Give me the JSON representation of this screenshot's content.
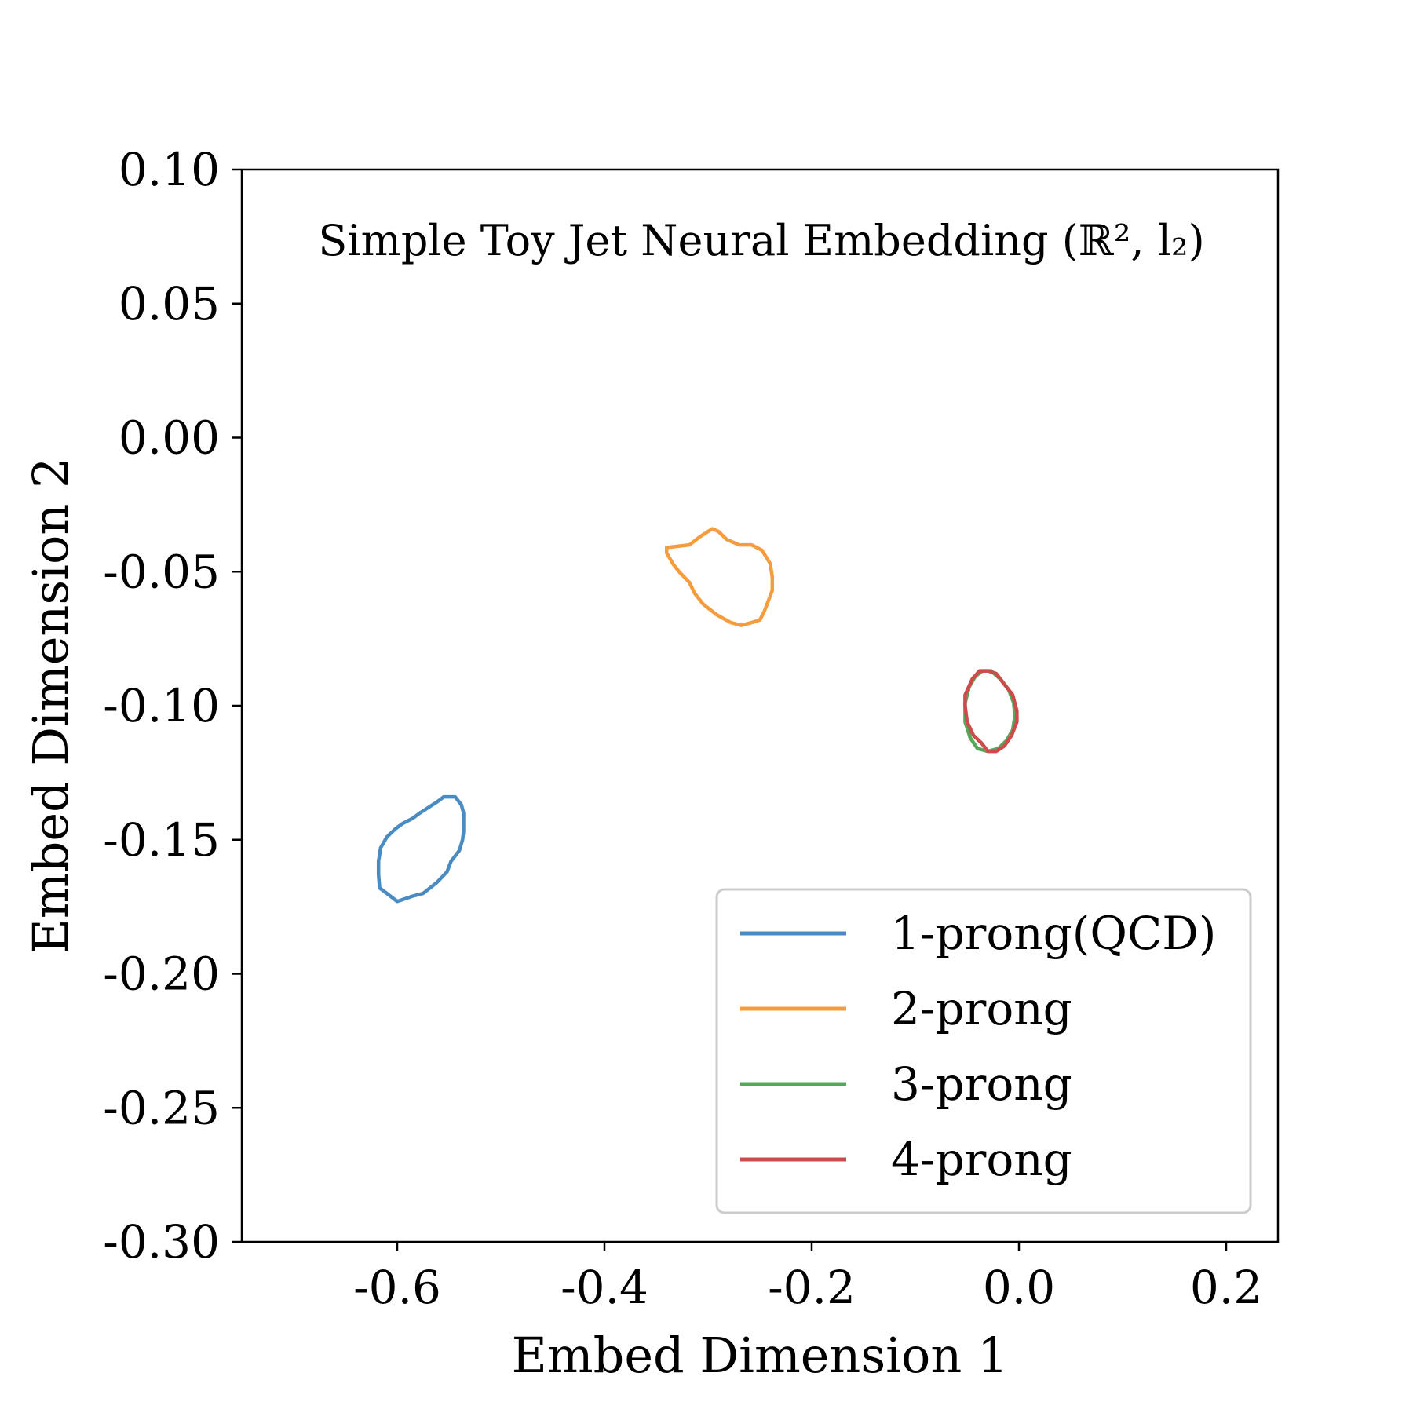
{
  "chart_data": {
    "type": "line",
    "title": "",
    "annotation": "Simple Toy Jet Neural Embedding (ℝ², l₂)",
    "xlabel": "Embed Dimension 1",
    "ylabel": "Embed Dimension 2",
    "xlim": [
      -0.75,
      0.25
    ],
    "ylim": [
      -0.3,
      0.1
    ],
    "xticks": [
      {
        "value": -0.6,
        "label": "-0.6"
      },
      {
        "value": -0.4,
        "label": "-0.4"
      },
      {
        "value": -0.2,
        "label": "-0.2"
      },
      {
        "value": 0.0,
        "label": "0.0"
      },
      {
        "value": 0.2,
        "label": "0.2"
      }
    ],
    "yticks": [
      {
        "value": 0.1,
        "label": "0.10"
      },
      {
        "value": 0.05,
        "label": "0.05"
      },
      {
        "value": 0.0,
        "label": "0.00"
      },
      {
        "value": -0.05,
        "label": "-0.05"
      },
      {
        "value": -0.1,
        "label": "-0.10"
      },
      {
        "value": -0.15,
        "label": "-0.15"
      },
      {
        "value": -0.2,
        "label": "-0.20"
      },
      {
        "value": -0.25,
        "label": "-0.25"
      },
      {
        "value": -0.3,
        "label": "-0.30"
      }
    ],
    "grid": false,
    "legend_position": "lower-right",
    "series": [
      {
        "name": "1-prong(QCD)",
        "color": "#4a8bc2",
        "points": [
          [
            -0.6,
            -0.173
          ],
          [
            -0.585,
            -0.171
          ],
          [
            -0.575,
            -0.17
          ],
          [
            -0.562,
            -0.166
          ],
          [
            -0.552,
            -0.162
          ],
          [
            -0.548,
            -0.158
          ],
          [
            -0.54,
            -0.154
          ],
          [
            -0.537,
            -0.15
          ],
          [
            -0.536,
            -0.147
          ],
          [
            -0.536,
            -0.14
          ],
          [
            -0.538,
            -0.137
          ],
          [
            -0.544,
            -0.134
          ],
          [
            -0.555,
            -0.134
          ],
          [
            -0.562,
            -0.136
          ],
          [
            -0.57,
            -0.138
          ],
          [
            -0.578,
            -0.14
          ],
          [
            -0.585,
            -0.142
          ],
          [
            -0.595,
            -0.144
          ],
          [
            -0.602,
            -0.146
          ],
          [
            -0.61,
            -0.149
          ],
          [
            -0.616,
            -0.153
          ],
          [
            -0.618,
            -0.158
          ],
          [
            -0.618,
            -0.163
          ],
          [
            -0.617,
            -0.168
          ],
          [
            -0.61,
            -0.17
          ],
          [
            -0.6,
            -0.173
          ]
        ]
      },
      {
        "name": "2-prong",
        "color": "#f59c3e",
        "points": [
          [
            -0.34,
            -0.041
          ],
          [
            -0.318,
            -0.04
          ],
          [
            -0.308,
            -0.037
          ],
          [
            -0.296,
            -0.034
          ],
          [
            -0.29,
            -0.035
          ],
          [
            -0.282,
            -0.038
          ],
          [
            -0.27,
            -0.04
          ],
          [
            -0.258,
            -0.04
          ],
          [
            -0.248,
            -0.042
          ],
          [
            -0.24,
            -0.047
          ],
          [
            -0.238,
            -0.052
          ],
          [
            -0.238,
            -0.057
          ],
          [
            -0.242,
            -0.061
          ],
          [
            -0.246,
            -0.065
          ],
          [
            -0.25,
            -0.068
          ],
          [
            -0.258,
            -0.069
          ],
          [
            -0.268,
            -0.07
          ],
          [
            -0.278,
            -0.069
          ],
          [
            -0.292,
            -0.066
          ],
          [
            -0.305,
            -0.062
          ],
          [
            -0.313,
            -0.058
          ],
          [
            -0.318,
            -0.054
          ],
          [
            -0.328,
            -0.05
          ],
          [
            -0.334,
            -0.047
          ],
          [
            -0.34,
            -0.043
          ],
          [
            -0.34,
            -0.041
          ]
        ]
      },
      {
        "name": "3-prong",
        "color": "#55a85a",
        "points": [
          [
            -0.048,
            -0.093
          ],
          [
            -0.042,
            -0.089
          ],
          [
            -0.035,
            -0.087
          ],
          [
            -0.027,
            -0.087
          ],
          [
            -0.018,
            -0.09
          ],
          [
            -0.01,
            -0.094
          ],
          [
            -0.005,
            -0.099
          ],
          [
            -0.004,
            -0.104
          ],
          [
            -0.006,
            -0.109
          ],
          [
            -0.012,
            -0.113
          ],
          [
            -0.02,
            -0.116
          ],
          [
            -0.03,
            -0.117
          ],
          [
            -0.04,
            -0.116
          ],
          [
            -0.047,
            -0.112
          ],
          [
            -0.052,
            -0.106
          ],
          [
            -0.052,
            -0.099
          ],
          [
            -0.048,
            -0.093
          ]
        ]
      },
      {
        "name": "4-prong",
        "color": "#cf4a4a",
        "points": [
          [
            -0.052,
            -0.096
          ],
          [
            -0.045,
            -0.09
          ],
          [
            -0.038,
            -0.087
          ],
          [
            -0.03,
            -0.087
          ],
          [
            -0.022,
            -0.088
          ],
          [
            -0.014,
            -0.092
          ],
          [
            -0.006,
            -0.096
          ],
          [
            -0.002,
            -0.102
          ],
          [
            -0.002,
            -0.106
          ],
          [
            -0.007,
            -0.111
          ],
          [
            -0.014,
            -0.115
          ],
          [
            -0.022,
            -0.117
          ],
          [
            -0.03,
            -0.117
          ],
          [
            -0.036,
            -0.114
          ],
          [
            -0.044,
            -0.111
          ],
          [
            -0.05,
            -0.106
          ],
          [
            -0.052,
            -0.1
          ],
          [
            -0.052,
            -0.096
          ]
        ]
      }
    ]
  }
}
